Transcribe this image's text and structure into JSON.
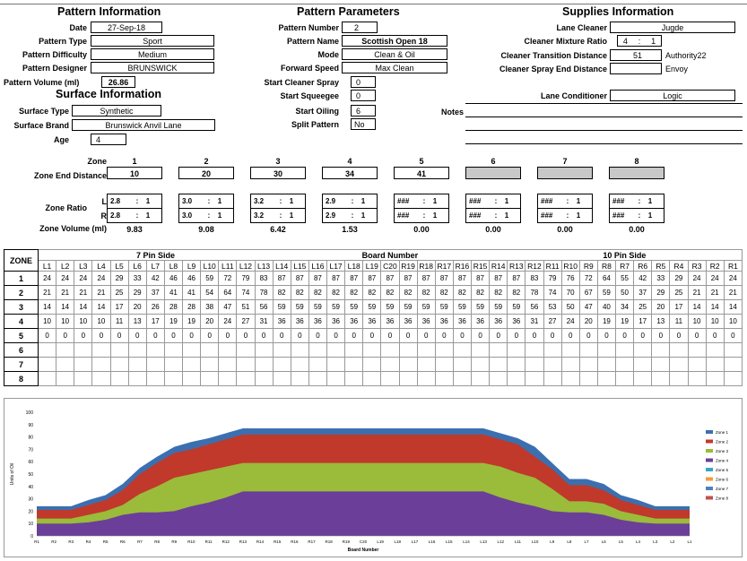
{
  "pattern_info": {
    "header": "Pattern Information",
    "date_label": "Date",
    "date": "27-Sep-18",
    "type_label": "Pattern Type",
    "type": "Sport",
    "difficulty_label": "Pattern Difficulty",
    "difficulty": "Medium",
    "designer_label": "Pattern Designer",
    "designer": "BRUNSWICK",
    "volume_label": "Pattern Volume (ml)",
    "volume": "26.86"
  },
  "surface_info": {
    "header": "Surface Information",
    "type_label": "Surface Type",
    "type": "Synthetic",
    "brand_label": "Surface Brand",
    "brand": "Brunswick Anvil Lane",
    "age_label": "Age",
    "age": "4"
  },
  "pattern_params": {
    "header": "Pattern Parameters",
    "number_label": "Pattern Number",
    "number": "2",
    "name_label": "Pattern Name",
    "name": "Scottish Open 18",
    "mode_label": "Mode",
    "mode": "Clean & Oil",
    "speed_label": "Forward Speed",
    "speed": "Max Clean",
    "spray_label": "Start Cleaner Spray",
    "spray": "0",
    "squeegee_label": "Start Squeegee",
    "squeegee": "0",
    "oiling_label": "Start Oiling",
    "oiling": "6",
    "split_label": "Split Pattern",
    "split": "No"
  },
  "supplies_info": {
    "header": "Supplies Information",
    "cleaner_label": "Lane Cleaner",
    "cleaner": "Jugde",
    "mixture_label": "Cleaner Mixture Ratio",
    "mixture_a": "4",
    "mixture_sep": ":",
    "mixture_b": "1",
    "transition_label": "Cleaner Transition Distance",
    "transition": "51",
    "transition_note": "Authority22",
    "spray_end_label": "Cleaner Spray End Distance",
    "spray_end_note": "Envoy",
    "conditioner_label": "Lane Conditioner",
    "conditioner": "Logic",
    "notes_label": "Notes"
  },
  "zones": {
    "zone_label": "Zone",
    "end_distance_label": "Zone End Distance",
    "ratio_label": "Zone Ratio",
    "volume_label": "Zone Volume (ml)",
    "l_label": "L",
    "r_label": "R",
    "items": [
      {
        "num": "1",
        "end": "10",
        "l": "2.8",
        "r": "2.8",
        "ratio_b": "1",
        "vol": "9.83",
        "sep": ":"
      },
      {
        "num": "2",
        "end": "20",
        "l": "3.0",
        "r": "3.0",
        "ratio_b": "1",
        "vol": "9.08",
        "sep": ":"
      },
      {
        "num": "3",
        "end": "30",
        "l": "3.2",
        "r": "3.2",
        "ratio_b": "1",
        "vol": "6.42",
        "sep": ":"
      },
      {
        "num": "4",
        "end": "34",
        "l": "2.9",
        "r": "2.9",
        "ratio_b": "1",
        "vol": "1.53",
        "sep": ":"
      },
      {
        "num": "5",
        "end": "41",
        "l": "###",
        "r": "###",
        "ratio_b": "1",
        "vol": "0.00",
        "sep": ":"
      },
      {
        "num": "6",
        "end": "",
        "l": "###",
        "r": "###",
        "ratio_b": "1",
        "vol": "0.00",
        "sep": ":"
      },
      {
        "num": "7",
        "end": "",
        "l": "###",
        "r": "###",
        "ratio_b": "1",
        "vol": "0.00",
        "sep": ":"
      },
      {
        "num": "8",
        "end": "",
        "l": "###",
        "r": "###",
        "ratio_b": "1",
        "vol": "0.00",
        "sep": ":"
      }
    ]
  },
  "grid": {
    "zone_header": "ZONE",
    "left_section": "7 Pin Side",
    "mid_section": "Board Number",
    "right_section": "10 Pin Side",
    "boards": [
      "L1",
      "L2",
      "L3",
      "L4",
      "L5",
      "L6",
      "L7",
      "L8",
      "L9",
      "L10",
      "L11",
      "L12",
      "L13",
      "L14",
      "L15",
      "L16",
      "L17",
      "L18",
      "L19",
      "C20",
      "R19",
      "R18",
      "R17",
      "R16",
      "R15",
      "R14",
      "R13",
      "R12",
      "R11",
      "R10",
      "R9",
      "R8",
      "R7",
      "R6",
      "R5",
      "R4",
      "R3",
      "R2",
      "R1"
    ],
    "rows": [
      {
        "zone": "1",
        "values": [
          "24",
          "24",
          "24",
          "24",
          "29",
          "33",
          "42",
          "46",
          "46",
          "59",
          "72",
          "79",
          "83",
          "87",
          "87",
          "87",
          "87",
          "87",
          "87",
          "87",
          "87",
          "87",
          "87",
          "87",
          "87",
          "87",
          "87",
          "83",
          "79",
          "76",
          "72",
          "64",
          "55",
          "42",
          "33",
          "29",
          "24",
          "24",
          "24"
        ]
      },
      {
        "zone": "2",
        "values": [
          "21",
          "21",
          "21",
          "21",
          "25",
          "29",
          "37",
          "41",
          "41",
          "54",
          "64",
          "74",
          "78",
          "82",
          "82",
          "82",
          "82",
          "82",
          "82",
          "82",
          "82",
          "82",
          "82",
          "82",
          "82",
          "82",
          "82",
          "78",
          "74",
          "70",
          "67",
          "59",
          "50",
          "37",
          "29",
          "25",
          "21",
          "21",
          "21"
        ]
      },
      {
        "zone": "3",
        "values": [
          "14",
          "14",
          "14",
          "14",
          "17",
          "20",
          "26",
          "28",
          "28",
          "38",
          "47",
          "51",
          "56",
          "59",
          "59",
          "59",
          "59",
          "59",
          "59",
          "59",
          "59",
          "59",
          "59",
          "59",
          "59",
          "59",
          "59",
          "56",
          "53",
          "50",
          "47",
          "40",
          "34",
          "25",
          "20",
          "17",
          "14",
          "14",
          "14"
        ]
      },
      {
        "zone": "4",
        "values": [
          "10",
          "10",
          "10",
          "10",
          "11",
          "13",
          "17",
          "19",
          "19",
          "20",
          "24",
          "27",
          "31",
          "36",
          "36",
          "36",
          "36",
          "36",
          "36",
          "36",
          "36",
          "36",
          "36",
          "36",
          "36",
          "36",
          "36",
          "31",
          "27",
          "24",
          "20",
          "19",
          "19",
          "17",
          "13",
          "11",
          "10",
          "10",
          "10"
        ]
      },
      {
        "zone": "5",
        "values": [
          "0",
          "0",
          "0",
          "0",
          "0",
          "0",
          "0",
          "0",
          "0",
          "0",
          "0",
          "0",
          "0",
          "0",
          "0",
          "0",
          "0",
          "0",
          "0",
          "0",
          "0",
          "0",
          "0",
          "0",
          "0",
          "0",
          "0",
          "0",
          "0",
          "0",
          "0",
          "0",
          "0",
          "0",
          "0",
          "0",
          "0",
          "0",
          "0"
        ]
      },
      {
        "zone": "6",
        "values": []
      },
      {
        "zone": "7",
        "values": []
      },
      {
        "zone": "8",
        "values": []
      }
    ]
  },
  "chart_data": {
    "type": "area",
    "xlabel": "Board Number",
    "ylabel": "Units of Oil",
    "ylim": [
      0,
      100
    ],
    "yticks": [
      "0",
      "10",
      "20",
      "30",
      "40",
      "50",
      "60",
      "70",
      "80",
      "90",
      "100"
    ],
    "categories": [
      "R1",
      "R2",
      "R3",
      "R4",
      "R5",
      "R6",
      "R7",
      "R8",
      "R9",
      "R10",
      "R11",
      "R12",
      "R13",
      "R14",
      "R15",
      "R16",
      "R17",
      "R18",
      "R19",
      "C20",
      "L19",
      "L18",
      "L17",
      "L16",
      "L15",
      "L14",
      "L13",
      "L12",
      "L11",
      "L10",
      "L9",
      "L8",
      "L7",
      "L6",
      "L5",
      "L4",
      "L3",
      "L2",
      "L1"
    ],
    "series": [
      {
        "name": "Zone 4",
        "values": [
          10,
          10,
          10,
          11,
          13,
          17,
          19,
          19,
          20,
          24,
          27,
          31,
          36,
          36,
          36,
          36,
          36,
          36,
          36,
          36,
          36,
          36,
          36,
          36,
          36,
          36,
          36,
          31,
          27,
          24,
          20,
          19,
          19,
          17,
          13,
          11,
          10,
          10,
          10
        ]
      },
      {
        "name": "Zone 3",
        "values": [
          14,
          14,
          14,
          17,
          20,
          25,
          34,
          40,
          47,
          50,
          53,
          56,
          59,
          59,
          59,
          59,
          59,
          59,
          59,
          59,
          59,
          59,
          59,
          59,
          59,
          59,
          59,
          56,
          51,
          47,
          38,
          28,
          28,
          26,
          20,
          17,
          14,
          14,
          14
        ]
      },
      {
        "name": "Zone 2",
        "values": [
          21,
          21,
          21,
          25,
          29,
          37,
          50,
          59,
          67,
          70,
          74,
          78,
          82,
          82,
          82,
          82,
          82,
          82,
          82,
          82,
          82,
          82,
          82,
          82,
          82,
          82,
          82,
          78,
          74,
          64,
          54,
          41,
          41,
          37,
          29,
          25,
          21,
          21,
          21
        ]
      },
      {
        "name": "Zone 1",
        "values": [
          24,
          24,
          24,
          29,
          33,
          42,
          55,
          64,
          72,
          76,
          79,
          83,
          87,
          87,
          87,
          87,
          87,
          87,
          87,
          87,
          87,
          87,
          87,
          87,
          87,
          87,
          87,
          83,
          79,
          72,
          59,
          46,
          46,
          42,
          33,
          29,
          24,
          24,
          24
        ]
      }
    ],
    "legend": [
      "Zone 1",
      "Zone 2",
      "Zone 3",
      "Zone 4",
      "Zone 5",
      "Zone 6",
      "Zone 7",
      "Zone 8"
    ],
    "legend_position": "right",
    "colors": {
      "Zone 1": "#3c6fb0",
      "Zone 2": "#c0392b",
      "Zone 3": "#9bbb3a",
      "Zone 4": "#6b3f99",
      "Zone 5": "#3aa6c4",
      "Zone 6": "#f39c3c",
      "Zone 7": "#4f81bd",
      "Zone 8": "#c0504d"
    }
  }
}
